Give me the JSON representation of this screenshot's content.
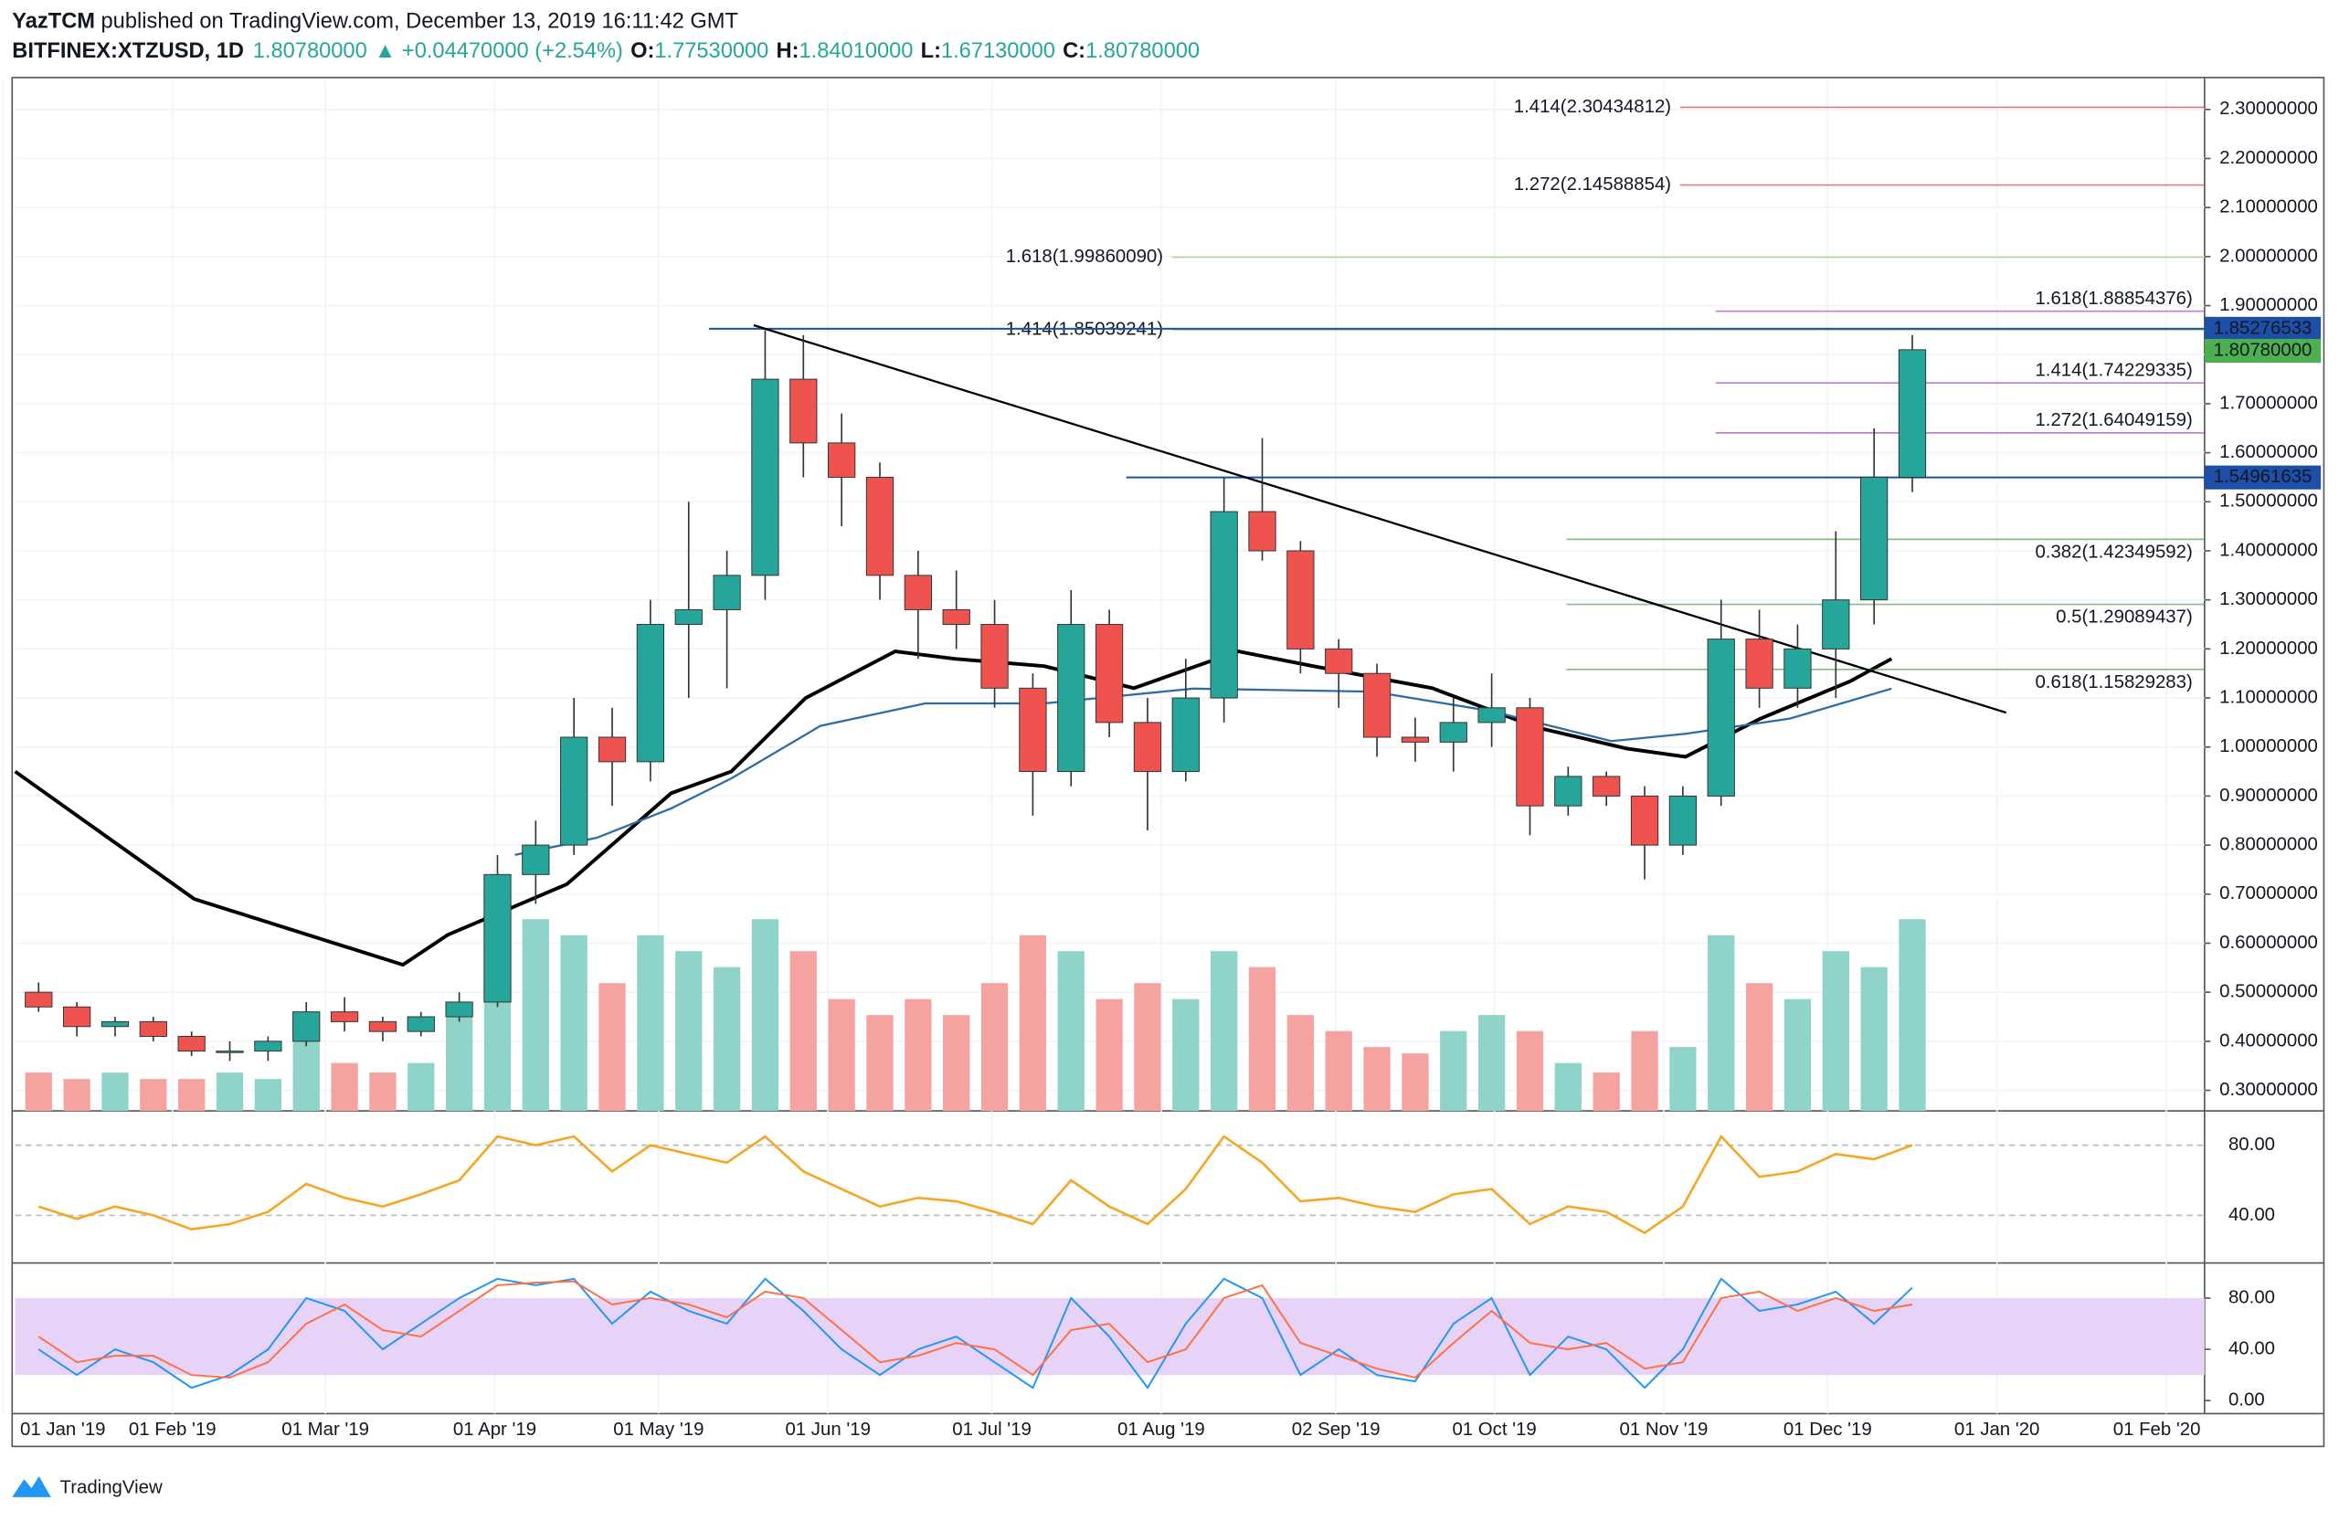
{
  "header": {
    "author": "YazTCM",
    "published": "published on TradingView.com, December 13, 2019 16:11:42 GMT",
    "symbol": "BITFINEX:XTZUSD, 1D",
    "last": "1.80780000",
    "change": "▲ +0.04470000 (+2.54%)",
    "ohlc": [
      {
        "label": "O:",
        "value": "1.77530000"
      },
      {
        "label": "H:",
        "value": "1.84010000"
      },
      {
        "label": "L:",
        "value": "1.67130000"
      },
      {
        "label": "C:",
        "value": "1.80780000"
      }
    ]
  },
  "chart_data": {
    "type": "candlestick",
    "x": [
      3,
      10,
      17,
      24,
      31,
      38,
      45,
      52,
      59,
      66,
      73,
      80,
      87,
      94,
      101,
      108,
      115,
      122,
      129,
      136,
      143,
      150,
      157,
      164,
      171,
      178,
      185,
      192,
      199,
      206,
      213,
      220,
      227,
      234,
      241,
      248,
      255,
      262,
      269,
      276,
      283,
      290,
      297,
      304,
      311,
      318,
      325,
      332,
      339,
      346
    ],
    "open": [
      0.5,
      0.47,
      0.43,
      0.44,
      0.41,
      0.38,
      0.38,
      0.4,
      0.46,
      0.44,
      0.42,
      0.45,
      0.48,
      0.74,
      0.8,
      1.02,
      0.97,
      1.25,
      1.28,
      1.35,
      1.75,
      1.62,
      1.55,
      1.35,
      1.28,
      1.25,
      1.12,
      0.95,
      1.25,
      1.05,
      0.95,
      1.1,
      1.48,
      1.4,
      1.2,
      1.15,
      1.02,
      1.01,
      1.05,
      1.08,
      0.88,
      0.94,
      0.9,
      0.8,
      0.9,
      1.22,
      1.12,
      1.2,
      1.3,
      1.55
    ],
    "high": [
      0.52,
      0.48,
      0.45,
      0.45,
      0.42,
      0.4,
      0.41,
      0.48,
      0.49,
      0.45,
      0.46,
      0.5,
      0.78,
      0.85,
      1.1,
      1.08,
      1.3,
      1.5,
      1.4,
      1.85,
      1.84,
      1.68,
      1.58,
      1.4,
      1.36,
      1.3,
      1.15,
      1.32,
      1.28,
      1.1,
      1.18,
      1.55,
      1.63,
      1.42,
      1.22,
      1.17,
      1.06,
      1.1,
      1.15,
      1.1,
      0.96,
      0.95,
      0.92,
      0.92,
      1.3,
      1.28,
      1.25,
      1.44,
      1.65,
      1.84
    ],
    "low": [
      0.46,
      0.41,
      0.41,
      0.4,
      0.37,
      0.36,
      0.36,
      0.39,
      0.42,
      0.4,
      0.41,
      0.44,
      0.47,
      0.68,
      0.78,
      0.88,
      0.93,
      1.1,
      1.12,
      1.3,
      1.55,
      1.45,
      1.3,
      1.18,
      1.2,
      1.08,
      0.86,
      0.92,
      1.02,
      0.83,
      0.93,
      1.05,
      1.38,
      1.15,
      1.08,
      0.98,
      0.97,
      0.95,
      1.0,
      0.82,
      0.86,
      0.88,
      0.73,
      0.78,
      0.88,
      1.08,
      1.08,
      1.1,
      1.25,
      1.52
    ],
    "close": [
      0.47,
      0.43,
      0.44,
      0.41,
      0.38,
      0.38,
      0.4,
      0.46,
      0.44,
      0.42,
      0.45,
      0.48,
      0.74,
      0.8,
      1.02,
      0.97,
      1.25,
      1.28,
      1.35,
      1.75,
      1.62,
      1.55,
      1.35,
      1.28,
      1.25,
      1.12,
      0.95,
      1.25,
      1.05,
      0.95,
      1.1,
      1.48,
      1.4,
      1.2,
      1.15,
      1.02,
      1.01,
      1.05,
      1.08,
      0.88,
      0.94,
      0.9,
      0.8,
      0.9,
      1.22,
      1.12,
      1.2,
      1.3,
      1.55,
      1.81
    ],
    "volume": [
      12,
      10,
      12,
      10,
      10,
      12,
      10,
      25,
      15,
      12,
      15,
      30,
      70,
      60,
      55,
      40,
      55,
      50,
      45,
      60,
      50,
      35,
      30,
      35,
      30,
      40,
      55,
      50,
      35,
      40,
      35,
      50,
      45,
      30,
      25,
      20,
      18,
      25,
      30,
      25,
      15,
      12,
      25,
      20,
      55,
      40,
      35,
      50,
      45,
      60
    ],
    "up_color": "#26a69a",
    "down_color": "#ef5350",
    "up_volume_color": "#8fd3c9",
    "down_volume_color": "#f5a3a1",
    "xlim": [
      2.2,
      403
    ],
    "ylim": [
      0.258,
      2.362
    ],
    "xticks": [
      {
        "value": 0,
        "label": "01 Jan '19"
      },
      {
        "value": 31,
        "label": "01 Feb '19"
      },
      {
        "value": 59,
        "label": "01 Mar '19"
      },
      {
        "value": 90,
        "label": "01 Apr '19"
      },
      {
        "value": 120,
        "label": "01 May '19"
      },
      {
        "value": 151,
        "label": "01 Jun '19"
      },
      {
        "value": 181,
        "label": "01 Jul '19"
      },
      {
        "value": 212,
        "label": "01 Aug '19"
      },
      {
        "value": 244,
        "label": "02 Sep '19"
      },
      {
        "value": 273,
        "label": "01 Oct '19"
      },
      {
        "value": 304,
        "label": "01 Nov '19"
      },
      {
        "value": 334,
        "label": "01 Dec '19"
      },
      {
        "value": 365,
        "label": "01 Jan '20"
      },
      {
        "value": 396,
        "label": "01 Feb '20"
      }
    ],
    "yticks": [
      {
        "value": 0.3,
        "label": "0.30000000"
      },
      {
        "value": 0.4,
        "label": "0.40000000"
      },
      {
        "value": 0.5,
        "label": "0.50000000"
      },
      {
        "value": 0.6,
        "label": "0.60000000"
      },
      {
        "value": 0.7,
        "label": "0.70000000"
      },
      {
        "value": 0.8,
        "label": "0.80000000"
      },
      {
        "value": 0.9,
        "label": "0.90000000"
      },
      {
        "value": 1.0,
        "label": "1.00000000"
      },
      {
        "value": 1.1,
        "label": "1.10000000"
      },
      {
        "value": 1.2,
        "label": "1.20000000"
      },
      {
        "value": 1.3,
        "label": "1.30000000"
      },
      {
        "value": 1.4,
        "label": "1.40000000"
      },
      {
        "value": 1.5,
        "label": "1.50000000"
      },
      {
        "value": 1.6,
        "label": "1.60000000"
      },
      {
        "value": 1.7,
        "label": "1.70000000"
      },
      {
        "value": 1.8,
        "label": "1.80000000"
      },
      {
        "value": 1.9,
        "label": "1.90000000"
      },
      {
        "value": 2.0,
        "label": "2.00000000"
      },
      {
        "value": 2.1,
        "label": "2.10000000"
      },
      {
        "value": 2.2,
        "label": "2.20000000"
      },
      {
        "value": 2.3,
        "label": "2.30000000"
      }
    ],
    "grid": true,
    "moving_averages": [
      {
        "color": "#000000",
        "x": [
          2.2,
          35,
          73.2,
          81.4,
          103.2,
          122.3,
          133.3,
          146.9,
          163.3,
          174.2,
          190.6,
          207,
          226.1,
          239.8,
          261.6,
          280.7,
          297.1,
          308,
          321.7,
          338.1,
          345.7
        ],
        "values": [
          0.95,
          0.69,
          0.556,
          0.617,
          0.72,
          0.906,
          0.95,
          1.1,
          1.195,
          1.18,
          1.165,
          1.12,
          1.195,
          1.165,
          1.12,
          1.04,
          0.997,
          0.98,
          1.058,
          1.134,
          1.18
        ]
      },
      {
        "color": "#2e6ca4",
        "x": [
          93.7,
          108.7,
          122.3,
          133.3,
          149.6,
          168.8,
          190.6,
          217.9,
          250.7,
          272.5,
          294.4,
          308,
          327.1,
          345.7
        ],
        "values": [
          0.78,
          0.815,
          0.875,
          0.936,
          1.043,
          1.089,
          1.089,
          1.119,
          1.113,
          1.073,
          1.012,
          1.027,
          1.058,
          1.119
        ]
      }
    ],
    "trendline": {
      "x": [
        137.4,
        366.7
      ],
      "values": [
        1.86,
        1.07
      ],
      "color": "#000000"
    },
    "levels": [
      {
        "value": 2.30434812,
        "label": "1.414(2.30434812)",
        "color": "#c62828",
        "start": 307
      },
      {
        "value": 2.14588854,
        "label": "1.272(2.14588854)",
        "color": "#c62828",
        "start": 307
      },
      {
        "value": 1.9986009,
        "label": "1.618(1.99860090)",
        "color": "#8bc34a",
        "start": 214
      },
      {
        "value": 1.85039241,
        "label": "1.414(1.85039241)",
        "color": "#8bc34a",
        "start": 214
      },
      {
        "value": 1.88854376,
        "label": "1.618(1.88854376)",
        "color": "#9c27b0",
        "start": 313.5
      },
      {
        "value": 1.74229335,
        "label": "1.414(1.74229335)",
        "color": "#9c27b0",
        "start": 313.5
      },
      {
        "value": 1.64049159,
        "label": "1.272(1.64049159)",
        "color": "#9c27b0",
        "start": 313.5
      },
      {
        "value": 1.42349592,
        "label": "0.382(1.42349592)",
        "color": "#388e3c",
        "start": 286.2
      },
      {
        "value": 1.29089437,
        "label": "0.5(1.29089437)",
        "color": "#388e3c",
        "start": 286.2
      },
      {
        "value": 1.15829283,
        "label": "0.618(1.15829283)",
        "color": "#388e3c",
        "start": 286.2
      }
    ],
    "price_labels": [
      {
        "value": 1.85276533,
        "label": "1.85276533",
        "color": "#1e4fa8",
        "start": 129.2
      },
      {
        "value": 1.8078,
        "label": "1.80780000",
        "color": "#4caf50"
      },
      {
        "value": 1.54961635,
        "label": "1.54961635",
        "color": "#1e4fa8",
        "start": 205.6
      }
    ],
    "rsi": {
      "values": [
        45,
        38,
        45,
        40,
        32,
        35,
        42,
        58,
        50,
        45,
        52,
        60,
        85,
        80,
        85,
        65,
        80,
        75,
        70,
        85,
        65,
        55,
        45,
        50,
        48,
        42,
        35,
        60,
        45,
        35,
        55,
        85,
        70,
        48,
        50,
        45,
        42,
        52,
        55,
        35,
        45,
        42,
        30,
        45,
        85,
        62,
        65,
        75,
        72,
        80
      ],
      "color": "#f5a623",
      "ylim": [
        14.5,
        97
      ],
      "yticks": [
        {
          "value": 80,
          "label": "80.00"
        },
        {
          "value": 40,
          "label": "40.00"
        }
      ]
    },
    "stoch": {
      "series": [
        {
          "color": "#2196f3",
          "values": [
            40,
            20,
            40,
            30,
            10,
            20,
            40,
            80,
            70,
            40,
            60,
            80,
            95,
            90,
            95,
            60,
            85,
            70,
            60,
            95,
            70,
            40,
            20,
            40,
            50,
            30,
            10,
            80,
            50,
            10,
            60,
            95,
            80,
            20,
            40,
            20,
            15,
            60,
            80,
            20,
            50,
            40,
            10,
            40,
            95,
            70,
            75,
            85,
            60,
            88
          ]
        },
        {
          "color": "#ff7043",
          "values": [
            50,
            30,
            35,
            35,
            20,
            18,
            30,
            60,
            75,
            55,
            50,
            70,
            90,
            92,
            93,
            75,
            80,
            75,
            65,
            85,
            80,
            55,
            30,
            35,
            45,
            40,
            20,
            55,
            60,
            30,
            40,
            80,
            90,
            45,
            35,
            25,
            18,
            45,
            70,
            45,
            40,
            45,
            25,
            30,
            80,
            85,
            70,
            80,
            70,
            75
          ]
        }
      ],
      "band": [
        20,
        80
      ],
      "band_color": "#e7d3f7",
      "ylim": [
        -9,
        105
      ],
      "yticks": [
        {
          "value": 80,
          "label": "80.00"
        },
        {
          "value": 40,
          "label": "40.00"
        },
        {
          "value": 0,
          "label": "0.00"
        }
      ]
    }
  },
  "footer": {
    "brand": "TradingView"
  }
}
